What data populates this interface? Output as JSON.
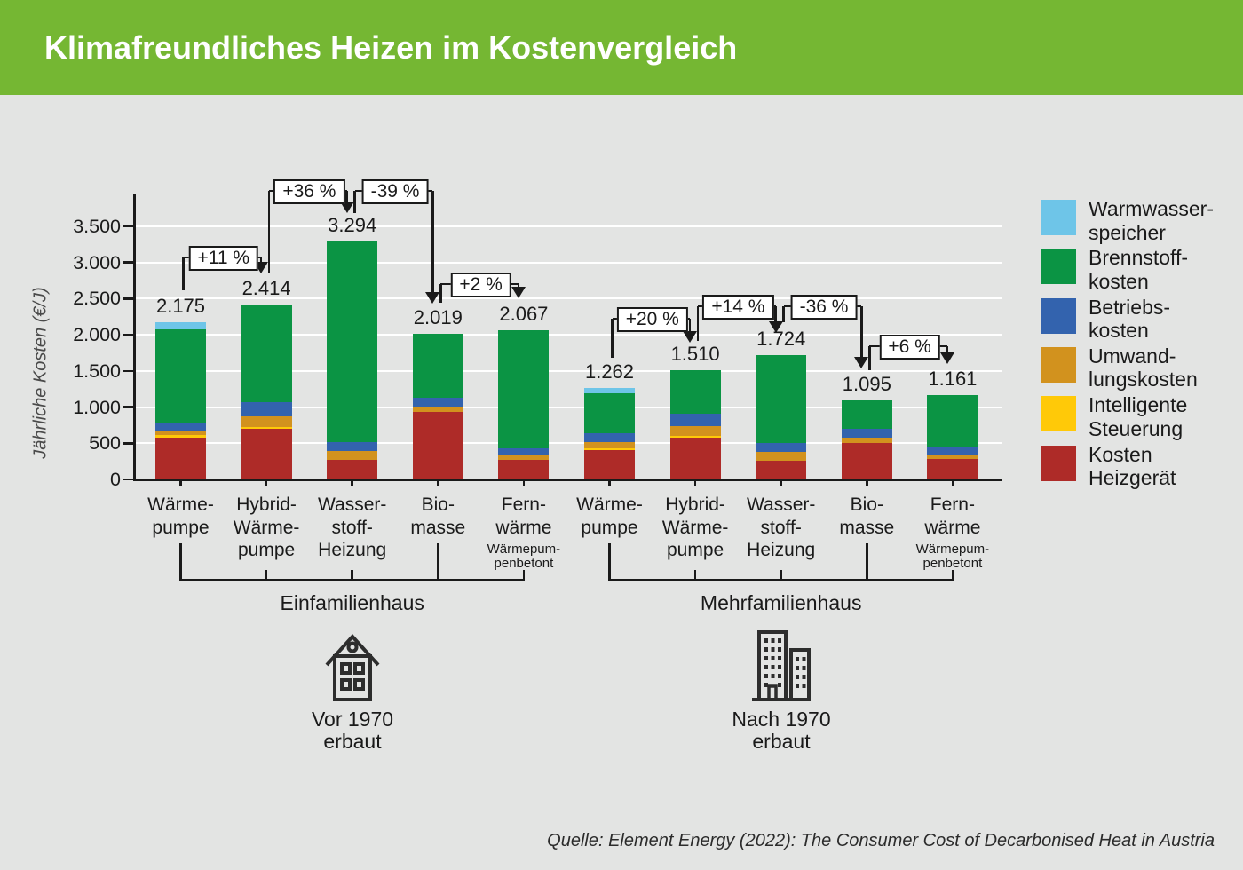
{
  "header": {
    "title": "Klimafreundliches Heizen im Kostenvergleich",
    "bg_color": "#75B733"
  },
  "source": "Quelle: Element Energy (2022): The Consumer Cost of Decarbonised Heat in Austria",
  "colors": {
    "background": "#E3E4E3",
    "axis": "#1A1A1A",
    "grid": "#FFFFFF"
  },
  "chart_data": {
    "type": "bar",
    "stacked": true,
    "title": "Klimafreundliches Heizen im Kostenvergleich",
    "ylabel": "Jährliche Kosten (€/J)",
    "ylim": [
      0,
      3500
    ],
    "grid": true,
    "legend_position": "right",
    "y_tick_values": [
      0,
      500,
      1000,
      1500,
      2000,
      2500,
      3000,
      3500
    ],
    "y_tick_labels": [
      "0",
      "500",
      "1.000",
      "1.500",
      "2.000",
      "2.500",
      "3.000",
      "3.500"
    ],
    "series": [
      {
        "key": "kosten-heizgeraet",
        "label_lines": [
          "Kosten",
          "Heizgerät"
        ],
        "color": "#AE2B28"
      },
      {
        "key": "intelligente-steuerung",
        "label_lines": [
          "Intelligente",
          "Steuerung"
        ],
        "color": "#FFC908"
      },
      {
        "key": "umwandlungskosten",
        "label_lines": [
          "Umwand-",
          "lungskosten"
        ],
        "color": "#D2921E"
      },
      {
        "key": "betriebskosten",
        "label_lines": [
          "Betriebs-",
          "kosten"
        ],
        "color": "#3363AE"
      },
      {
        "key": "brennstoffkosten",
        "label_lines": [
          "Brennstoff-",
          "kosten"
        ],
        "color": "#0B9444"
      },
      {
        "key": "warmwasserspeicher",
        "label_lines": [
          "Warmwasser-",
          "speicher"
        ],
        "color": "#6EC5E8"
      }
    ],
    "legend_display_order": [
      5,
      4,
      3,
      2,
      1,
      0
    ],
    "bars": [
      {
        "label_lines": [
          "Wärme-",
          "pumpe"
        ],
        "sub_lines": [],
        "total": 2175,
        "total_label": "2.175",
        "values": [
          574,
          40,
          62,
          110,
          1290,
          99
        ]
      },
      {
        "label_lines": [
          "Hybrid-",
          "Wärme-",
          "pumpe"
        ],
        "sub_lines": [],
        "total": 2414,
        "total_label": "2.414",
        "values": [
          697,
          32,
          140,
          196,
          1349,
          0
        ]
      },
      {
        "label_lines": [
          "Wasser-",
          "stoff-",
          "Heizung"
        ],
        "sub_lines": [],
        "total": 3294,
        "total_label": "3.294",
        "values": [
          267,
          0,
          122,
          123,
          2782,
          0
        ]
      },
      {
        "label_lines": [
          "Bio-",
          "masse"
        ],
        "sub_lines": [],
        "total": 2019,
        "total_label": "2.019",
        "values": [
          930,
          0,
          74,
          123,
          892,
          0
        ]
      },
      {
        "label_lines": [
          "Fern-",
          "wärme"
        ],
        "sub_lines": [
          "Wärmepum-",
          "penbetont"
        ],
        "total": 2067,
        "total_label": "2.067",
        "values": [
          274,
          0,
          61,
          95,
          1637,
          0
        ]
      },
      {
        "label_lines": [
          "Wärme-",
          "pumpe"
        ],
        "sub_lines": [],
        "total": 1262,
        "total_label": "1.262",
        "values": [
          409,
          21,
          82,
          123,
          553,
          74
        ]
      },
      {
        "label_lines": [
          "Hybrid-",
          "Wärme-",
          "pumpe"
        ],
        "sub_lines": [],
        "total": 1510,
        "total_label": "1.510",
        "values": [
          574,
          32,
          131,
          176,
          597,
          0
        ]
      },
      {
        "label_lines": [
          "Wasser-",
          "stoff-",
          "Heizung"
        ],
        "sub_lines": [],
        "total": 1724,
        "total_label": "1.724",
        "values": [
          254,
          0,
          123,
          123,
          1224,
          0
        ]
      },
      {
        "label_lines": [
          "Bio-",
          "masse"
        ],
        "sub_lines": [],
        "total": 1095,
        "total_label": "1.095",
        "values": [
          500,
          0,
          74,
          130,
          391,
          0
        ]
      },
      {
        "label_lines": [
          "Fern-",
          "wärme"
        ],
        "sub_lines": [
          "Wärmepum-",
          "penbetont"
        ],
        "total": 1161,
        "total_label": "1.161",
        "values": [
          286,
          0,
          62,
          94,
          719,
          0
        ]
      }
    ],
    "groups": [
      {
        "label": "Einfamilienhaus",
        "bar_indices": [
          0,
          1,
          2,
          3,
          4
        ],
        "icon": "house-icon",
        "built_lines": [
          "Vor 1970",
          "erbaut"
        ]
      },
      {
        "label": "Mehrfamilienhaus",
        "bar_indices": [
          5,
          6,
          7,
          8,
          9
        ],
        "icon": "apartment-buildings-icon",
        "built_lines": [
          "Nach 1970",
          "erbaut"
        ]
      }
    ],
    "annotations": [
      {
        "from": 0,
        "to": 1,
        "label": "+11 %"
      },
      {
        "from": 1,
        "to": 2,
        "label": "+36 %"
      },
      {
        "from": 2,
        "to": 3,
        "label": "-39 %"
      },
      {
        "from": 3,
        "to": 4,
        "label": "+2 %"
      },
      {
        "from": 5,
        "to": 6,
        "label": "+20 %"
      },
      {
        "from": 6,
        "to": 7,
        "label": "+14 %"
      },
      {
        "from": 7,
        "to": 8,
        "label": "-36 %"
      },
      {
        "from": 8,
        "to": 9,
        "label": "+6 %"
      }
    ]
  }
}
